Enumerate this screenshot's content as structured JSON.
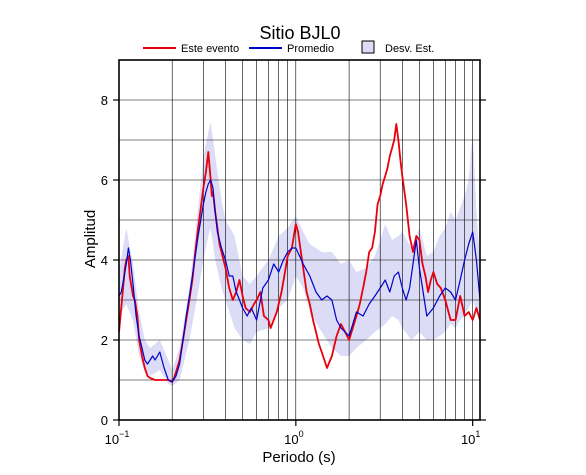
{
  "chart_data": {
    "type": "line",
    "title": "Sitio BJL0",
    "xlabel": "Periodo (s)",
    "ylabel": "Amplitud",
    "xscale": "log",
    "xlim": [
      0.1,
      11
    ],
    "ylim": [
      0,
      9
    ],
    "grid": true,
    "legend_placement": "top",
    "x_tick_labels": [
      {
        "x": 0.1,
        "base": "10",
        "exp": "−1"
      },
      {
        "x": 1,
        "base": "10",
        "exp": "0"
      },
      {
        "x": 10,
        "base": "10",
        "exp": "1"
      }
    ],
    "y_ticks": [
      0,
      2,
      4,
      6,
      8
    ],
    "legend": [
      {
        "label": "Este evento",
        "color": "#e8000b",
        "kind": "line"
      },
      {
        "label": "Promedio",
        "color": "#0000cc",
        "kind": "line"
      },
      {
        "label": "Desv. Est.",
        "color": "#dcdcf6",
        "kind": "patch"
      }
    ],
    "series": [
      {
        "name": "Este evento",
        "color": "#e8000b",
        "x": [
          0.1,
          0.102,
          0.105,
          0.108,
          0.11,
          0.113,
          0.115,
          0.118,
          0.12,
          0.123,
          0.127,
          0.13,
          0.135,
          0.14,
          0.145,
          0.15,
          0.16,
          0.17,
          0.18,
          0.19,
          0.2,
          0.205,
          0.21,
          0.22,
          0.23,
          0.24,
          0.25,
          0.26,
          0.27,
          0.28,
          0.29,
          0.3,
          0.31,
          0.32,
          0.33,
          0.335,
          0.34,
          0.35,
          0.36,
          0.37,
          0.38,
          0.39,
          0.4,
          0.42,
          0.44,
          0.46,
          0.48,
          0.5,
          0.52,
          0.55,
          0.58,
          0.6,
          0.63,
          0.66,
          0.7,
          0.72,
          0.75,
          0.78,
          0.8,
          0.83,
          0.86,
          0.9,
          0.95,
          1.0,
          1.03,
          1.06,
          1.1,
          1.15,
          1.2,
          1.25,
          1.3,
          1.35,
          1.4,
          1.45,
          1.5,
          1.6,
          1.7,
          1.8,
          1.9,
          2.0,
          2.1,
          2.2,
          2.3,
          2.4,
          2.5,
          2.6,
          2.7,
          2.8,
          2.9,
          3.0,
          3.1,
          3.2,
          3.3,
          3.4,
          3.5,
          3.6,
          3.7,
          3.8,
          3.9,
          4.0,
          4.2,
          4.4,
          4.6,
          4.8,
          5.0,
          5.2,
          5.4,
          5.6,
          5.8,
          6.0,
          6.3,
          6.6,
          7.0,
          7.5,
          8.0,
          8.5,
          9.0,
          9.5,
          10.0,
          10.5,
          11.0
        ],
        "y": [
          2.2,
          2.6,
          3.2,
          3.8,
          4.0,
          4.1,
          3.6,
          3.3,
          3.1,
          3.0,
          2.6,
          2.0,
          1.6,
          1.3,
          1.1,
          1.05,
          1.0,
          1.0,
          1.0,
          1.0,
          0.95,
          1.05,
          1.2,
          1.5,
          2.0,
          2.5,
          3.0,
          3.5,
          4.2,
          4.8,
          5.3,
          5.8,
          6.2,
          6.7,
          6.0,
          5.6,
          5.7,
          5.2,
          4.8,
          4.4,
          4.2,
          4.0,
          3.8,
          3.3,
          3.0,
          3.2,
          3.5,
          3.1,
          2.8,
          2.7,
          2.9,
          3.0,
          3.2,
          2.6,
          2.5,
          2.3,
          2.5,
          2.7,
          2.9,
          3.2,
          3.6,
          4.1,
          4.3,
          4.9,
          4.7,
          4.3,
          3.8,
          3.2,
          2.9,
          2.5,
          2.2,
          1.9,
          1.7,
          1.5,
          1.3,
          1.6,
          2.1,
          2.4,
          2.2,
          2.0,
          2.3,
          2.6,
          2.9,
          3.3,
          3.7,
          4.2,
          4.3,
          4.7,
          5.4,
          5.6,
          5.9,
          6.1,
          6.3,
          6.6,
          6.8,
          7.0,
          7.4,
          7.0,
          6.5,
          6.1,
          5.4,
          4.6,
          4.2,
          4.6,
          4.5,
          3.9,
          3.6,
          3.2,
          3.5,
          3.7,
          3.4,
          3.3,
          3.0,
          2.5,
          2.5,
          3.1,
          2.6,
          2.7,
          2.5,
          2.8,
          2.5
        ]
      },
      {
        "name": "Promedio",
        "color": "#0000cc",
        "x": [
          0.1,
          0.103,
          0.106,
          0.11,
          0.113,
          0.116,
          0.12,
          0.125,
          0.13,
          0.135,
          0.14,
          0.145,
          0.15,
          0.155,
          0.16,
          0.17,
          0.18,
          0.19,
          0.2,
          0.21,
          0.22,
          0.23,
          0.24,
          0.25,
          0.26,
          0.27,
          0.28,
          0.29,
          0.3,
          0.31,
          0.32,
          0.33,
          0.34,
          0.35,
          0.36,
          0.38,
          0.4,
          0.42,
          0.44,
          0.46,
          0.48,
          0.5,
          0.53,
          0.56,
          0.6,
          0.65,
          0.7,
          0.75,
          0.8,
          0.85,
          0.9,
          0.95,
          1.0,
          1.05,
          1.1,
          1.2,
          1.3,
          1.4,
          1.5,
          1.6,
          1.7,
          1.8,
          1.9,
          2.0,
          2.1,
          2.2,
          2.4,
          2.6,
          2.8,
          3.0,
          3.2,
          3.4,
          3.6,
          3.8,
          4.0,
          4.2,
          4.4,
          4.6,
          4.8,
          5.0,
          5.5,
          6.0,
          6.5,
          7.0,
          7.5,
          8.0,
          8.5,
          9.0,
          9.5,
          10.0,
          10.5,
          11.0
        ],
        "y": [
          3.1,
          3.2,
          3.5,
          3.9,
          4.3,
          4.0,
          3.4,
          2.6,
          2.1,
          1.8,
          1.5,
          1.4,
          1.5,
          1.6,
          1.5,
          1.7,
          1.3,
          1.0,
          0.95,
          1.1,
          1.4,
          2.0,
          2.6,
          3.1,
          3.6,
          4.1,
          4.6,
          5.0,
          5.4,
          5.7,
          5.9,
          6.0,
          5.8,
          5.2,
          4.7,
          4.3,
          4.0,
          3.6,
          3.6,
          3.2,
          3.0,
          2.8,
          2.6,
          2.8,
          2.5,
          3.3,
          3.5,
          3.9,
          3.7,
          4.0,
          4.2,
          4.3,
          4.3,
          4.1,
          3.9,
          3.6,
          3.2,
          3.0,
          3.1,
          3.0,
          2.5,
          2.3,
          2.2,
          2.1,
          2.4,
          2.7,
          2.6,
          2.9,
          3.1,
          3.3,
          3.5,
          3.2,
          3.6,
          3.7,
          3.3,
          3.0,
          3.3,
          3.9,
          4.5,
          3.8,
          2.6,
          2.8,
          3.1,
          3.3,
          3.2,
          3.0,
          3.5,
          4.0,
          4.4,
          4.7,
          4.0,
          3.0
        ]
      }
    ],
    "band": {
      "name": "Desv. Est.",
      "color": "#dcdcf6",
      "x": [
        0.1,
        0.11,
        0.12,
        0.13,
        0.14,
        0.15,
        0.17,
        0.19,
        0.2,
        0.22,
        0.25,
        0.28,
        0.3,
        0.32,
        0.33,
        0.35,
        0.38,
        0.4,
        0.45,
        0.5,
        0.55,
        0.6,
        0.7,
        0.8,
        0.9,
        1.0,
        1.1,
        1.2,
        1.4,
        1.6,
        1.8,
        2.0,
        2.2,
        2.5,
        2.8,
        3.0,
        3.2,
        3.5,
        3.8,
        4.0,
        4.5,
        5.0,
        5.5,
        6.0,
        6.5,
        7.0,
        7.5,
        8.0,
        8.5,
        9.0,
        9.5,
        10.0,
        10.5,
        11.0
      ],
      "lower": [
        2.6,
        2.9,
        2.5,
        1.6,
        1.2,
        1.1,
        1.25,
        0.9,
        0.85,
        1.0,
        2.0,
        3.2,
        4.0,
        4.6,
        4.8,
        4.0,
        3.3,
        3.0,
        2.3,
        2.0,
        1.9,
        2.2,
        2.3,
        2.8,
        3.0,
        3.6,
        3.3,
        2.7,
        2.2,
        1.8,
        1.6,
        1.6,
        1.8,
        2.0,
        2.2,
        2.3,
        2.4,
        2.6,
        2.5,
        2.3,
        2.0,
        2.2,
        2.0,
        2.0,
        2.1,
        2.2,
        2.4,
        2.3,
        2.5,
        2.6,
        2.8,
        3.0,
        2.7,
        2.5
      ],
      "upper": [
        3.7,
        4.8,
        3.9,
        2.7,
        2.0,
        1.8,
        2.0,
        1.5,
        1.25,
        1.8,
        3.3,
        5.3,
        6.6,
        7.2,
        7.45,
        6.6,
        5.5,
        5.0,
        4.6,
        3.6,
        3.4,
        3.6,
        4.0,
        4.6,
        4.8,
        5.1,
        4.7,
        4.4,
        4.2,
        4.2,
        3.9,
        4.0,
        3.7,
        3.8,
        4.1,
        4.5,
        4.9,
        4.5,
        4.6,
        4.7,
        4.3,
        4.8,
        4.1,
        4.2,
        4.6,
        4.8,
        5.2,
        5.0,
        5.3,
        5.6,
        6.0,
        7.2,
        5.2,
        4.0
      ]
    }
  }
}
